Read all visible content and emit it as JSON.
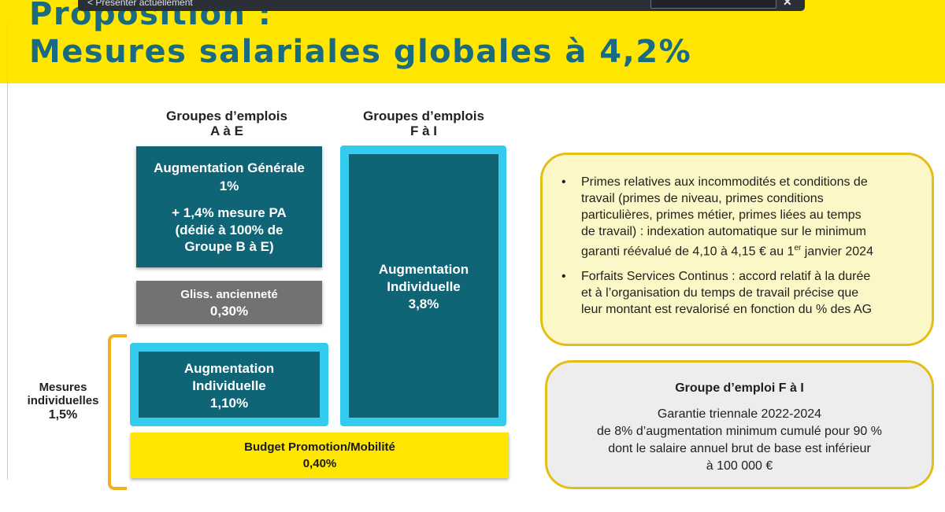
{
  "toolbar": {
    "label": "< Présenter actuellement",
    "close": "✕"
  },
  "header": {
    "title_line1": "Proposition :",
    "title_line2": "Mesures salariales globales à 4,2%"
  },
  "columns": {
    "left": {
      "line1": "Groupes d’emplois",
      "line2": "A à E"
    },
    "right": {
      "line1": "Groupes d’emplois",
      "line2": "F à I"
    }
  },
  "blocks": {
    "ag": {
      "line1": "Augmentation Générale",
      "line2": "1%",
      "line3": "+ 1,4% mesure PA",
      "line4": "(dédié à 100% de",
      "line5": "Groupe B à E)"
    },
    "gliss": {
      "line1": "Gliss. ancienneté",
      "line2": "0,30%"
    },
    "ai_left": {
      "line1": "Augmentation",
      "line2": "Individuelle",
      "line3": "1,10%"
    },
    "ai_right": {
      "line1": "Augmentation",
      "line2": "Individuelle",
      "line3": "3,8%"
    },
    "budget": {
      "line1": "Budget Promotion/Mobilité",
      "line2": "0,40%"
    }
  },
  "mesures": {
    "line1": "Mesures",
    "line2": "individuelles",
    "line3": "1,5%"
  },
  "panel_primes": {
    "bullet": "•",
    "items": [
      {
        "l1": "Primes relatives aux incommodités et conditions de",
        "l2": "travail (primes de niveau, primes conditions",
        "l3": "particulières, primes métier, primes liées au temps",
        "l4": "de travail) : indexation automatique sur le minimum",
        "l5a": "garanti réévalué de 4,10 à 4,15 € au 1",
        "l5sup": "er",
        "l5b": " janvier 2024"
      },
      {
        "l1": "Forfaits Services Continus : accord relatif à la durée",
        "l2": "et à l’organisation du temps de travail précise que",
        "l3": "leur montant est revalorisé en fonction du % des AG"
      }
    ]
  },
  "panel_garantie": {
    "title": "Groupe d’emploi F à I",
    "line1": "Garantie triennale 2022-2024",
    "line2": "de 8% d’augmentation minimum cumulé pour 90 %",
    "line3": "dont le salaire annuel brut de base est inférieur",
    "line4": "à 100 000 €"
  }
}
